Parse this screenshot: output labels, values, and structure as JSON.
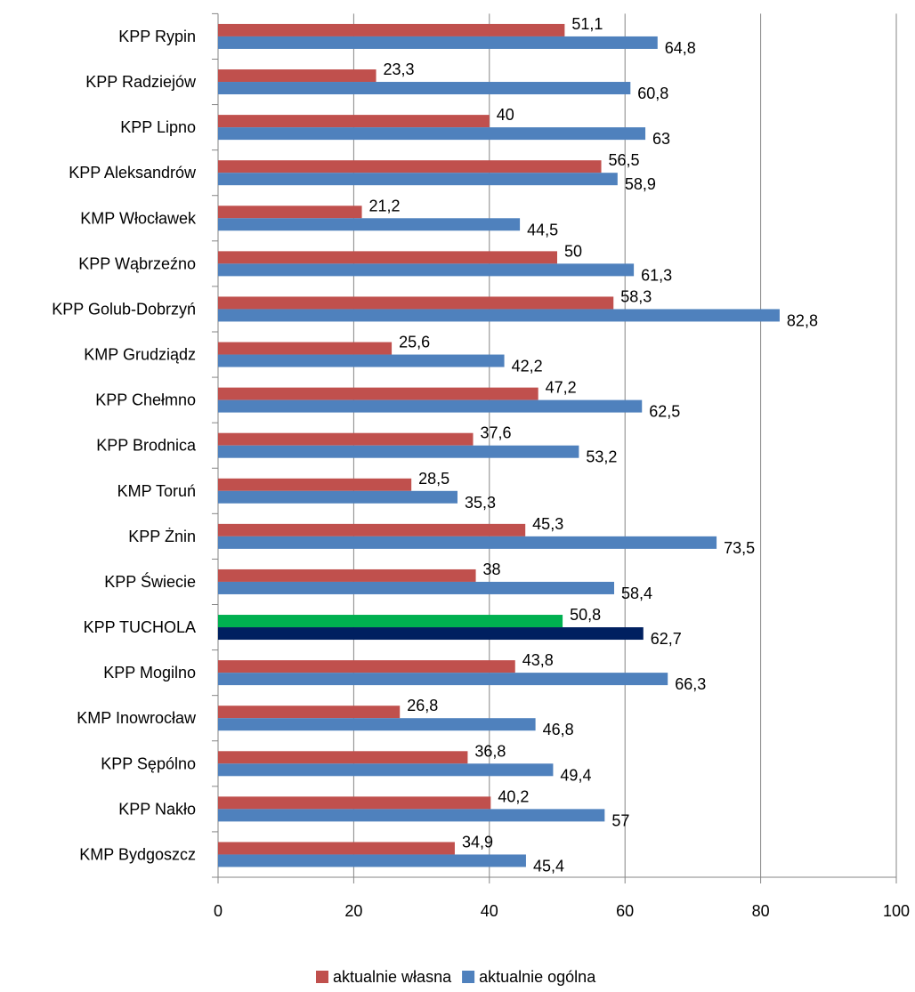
{
  "chart_data": {
    "type": "hbar",
    "categories": [
      "KPP Rypin",
      "KPP Radziejów",
      "KPP Lipno",
      "KPP Aleksandrów",
      "KMP Włocławek",
      "KPP Wąbrzeźno",
      "KPP Golub-Dobrzyń",
      "KMP Grudziądz",
      "KPP Chełmno",
      "KPP Brodnica",
      "KMP Toruń",
      "KPP Żnin",
      "KPP Świecie",
      "KPP TUCHOLA",
      "KPP Mogilno",
      "KMP Inowrocław",
      "KPP Sępólno",
      "KPP Nakło",
      "KMP Bydgoszcz"
    ],
    "series": [
      {
        "name": "aktualnie własna",
        "color": "#c0504d",
        "point_colors": [
          "#c0504d",
          "#c0504d",
          "#c0504d",
          "#c0504d",
          "#c0504d",
          "#c0504d",
          "#c0504d",
          "#c0504d",
          "#c0504d",
          "#c0504d",
          "#c0504d",
          "#c0504d",
          "#c0504d",
          "#00b050",
          "#c0504d",
          "#c0504d",
          "#c0504d",
          "#c0504d",
          "#c0504d"
        ],
        "values": [
          51.1,
          23.3,
          40,
          56.5,
          21.2,
          50,
          58.3,
          25.6,
          47.2,
          37.6,
          28.5,
          45.3,
          38,
          50.8,
          43.8,
          26.8,
          36.8,
          40.2,
          34.9
        ],
        "value_labels": [
          "51,1",
          "23,3",
          "40",
          "56,5",
          "21,2",
          "50",
          "58,3",
          "25,6",
          "47,2",
          "37,6",
          "28,5",
          "45,3",
          "38",
          "50,8",
          "43,8",
          "26,8",
          "36,8",
          "40,2",
          "34,9"
        ]
      },
      {
        "name": "aktualnie ogólna",
        "color": "#4f81bd",
        "point_colors": [
          "#4f81bd",
          "#4f81bd",
          "#4f81bd",
          "#4f81bd",
          "#4f81bd",
          "#4f81bd",
          "#4f81bd",
          "#4f81bd",
          "#4f81bd",
          "#4f81bd",
          "#4f81bd",
          "#4f81bd",
          "#4f81bd",
          "#002060",
          "#4f81bd",
          "#4f81bd",
          "#4f81bd",
          "#4f81bd",
          "#4f81bd"
        ],
        "values": [
          64.8,
          60.8,
          63,
          58.9,
          44.5,
          61.3,
          82.8,
          42.2,
          62.5,
          53.2,
          35.3,
          73.5,
          58.4,
          62.7,
          66.3,
          46.8,
          49.4,
          57,
          45.4
        ],
        "value_labels": [
          "64,8",
          "60,8",
          "63",
          "58,9",
          "44,5",
          "61,3",
          "82,8",
          "42,2",
          "62,5",
          "53,2",
          "35,3",
          "73,5",
          "58,4",
          "62,7",
          "66,3",
          "46,8",
          "49,4",
          "57",
          "45,4"
        ]
      }
    ],
    "xlim": [
      0,
      100
    ],
    "xticks": [
      0,
      20,
      40,
      60,
      80,
      100
    ],
    "grid": true,
    "legend": "bottom"
  }
}
